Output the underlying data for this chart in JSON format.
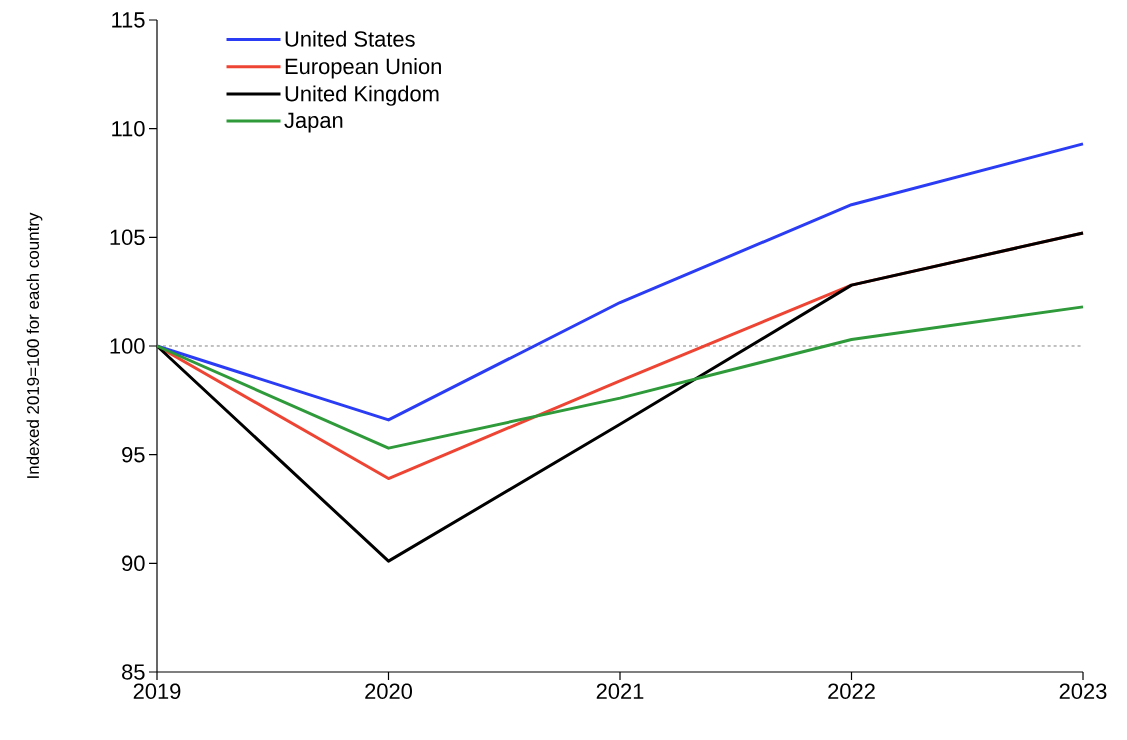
{
  "chart_data": {
    "type": "line",
    "ylabel": "Indexed 2019=100 for each country",
    "x": [
      2019,
      2020,
      2021,
      2022,
      2023
    ],
    "series": [
      {
        "name": "United States",
        "color": "#2b3cf5",
        "values": [
          100,
          96.6,
          102.0,
          106.5,
          109.3
        ]
      },
      {
        "name": "European Union",
        "color": "#ee4433",
        "values": [
          100,
          93.9,
          98.4,
          102.8,
          105.2
        ]
      },
      {
        "name": "United Kingdom",
        "color": "#000000",
        "values": [
          100,
          90.1,
          96.4,
          102.8,
          105.2
        ]
      },
      {
        "name": "Japan",
        "color": "#2e9a3a",
        "values": [
          100,
          95.3,
          97.6,
          100.3,
          101.8
        ]
      }
    ],
    "xlim": [
      2019,
      2023
    ],
    "xticks": [
      2019,
      2020,
      2021,
      2022,
      2023
    ],
    "ylim": [
      85,
      115
    ],
    "yticks": [
      85,
      90,
      95,
      100,
      105,
      110,
      115
    ],
    "ref_lines": [
      {
        "axis": "y",
        "value": 100,
        "color": "#000000",
        "line_style": "dashed"
      }
    ],
    "legend": "top left",
    "grid": false,
    "marker": "none",
    "line_style": "solid"
  }
}
